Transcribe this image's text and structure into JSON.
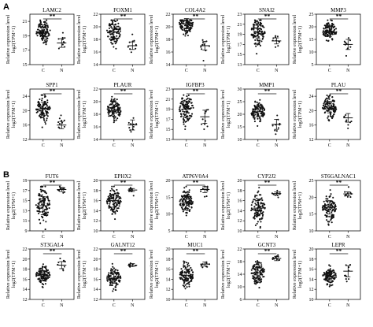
{
  "panel_labels": [
    "A",
    "B"
  ],
  "chart_data": [
    {
      "type": "scatter",
      "panel": "A",
      "title": "LAMC2",
      "ylabel": "Relative expression level",
      "ylabel2": "log2(TPM+1)",
      "yticks": [
        15,
        17,
        19,
        21
      ],
      "ylim": [
        15,
        22
      ],
      "categories": [
        "C",
        "N"
      ],
      "significance": "**",
      "series": [
        {
          "name": "C",
          "mean": 19.6,
          "sd": 0.9,
          "n": 110
        },
        {
          "name": "N",
          "mean": 18.0,
          "sd": 0.6,
          "n": 10
        }
      ]
    },
    {
      "type": "scatter",
      "panel": "A",
      "title": "FOXM1",
      "ylabel": "Relative expression level",
      "ylabel2": "log2(TPM+1)",
      "yticks": [
        14,
        16,
        18,
        20,
        22
      ],
      "ylim": [
        14,
        22
      ],
      "categories": [
        "C",
        "N"
      ],
      "significance": "**",
      "series": [
        {
          "name": "C",
          "mean": 19.2,
          "sd": 1.1,
          "n": 110
        },
        {
          "name": "N",
          "mean": 17.0,
          "sd": 0.6,
          "n": 10
        }
      ]
    },
    {
      "type": "scatter",
      "panel": "A",
      "title": "COL4A2",
      "ylabel": "Relative expression level",
      "ylabel2": "log2(TPM+1)",
      "yticks": [
        14,
        16,
        18,
        20,
        22
      ],
      "ylim": [
        14,
        22
      ],
      "categories": [
        "C",
        "N"
      ],
      "significance": "**",
      "series": [
        {
          "name": "C",
          "mean": 20.5,
          "sd": 0.8,
          "n": 110
        },
        {
          "name": "N",
          "mean": 17.0,
          "sd": 0.7,
          "n": 10
        }
      ]
    },
    {
      "type": "scatter",
      "panel": "A",
      "title": "SNAI2",
      "ylabel": "Relative expression level",
      "ylabel2": "log2(TPM+1)",
      "yticks": [
        13,
        15,
        17,
        19,
        21,
        23
      ],
      "ylim": [
        13,
        23
      ],
      "categories": [
        "C",
        "N"
      ],
      "significance": "**",
      "series": [
        {
          "name": "C",
          "mean": 19.5,
          "sd": 1.3,
          "n": 110
        },
        {
          "name": "N",
          "mean": 17.7,
          "sd": 0.6,
          "n": 10
        }
      ]
    },
    {
      "type": "scatter",
      "panel": "A",
      "title": "MMP3",
      "ylabel": "Relative expression level",
      "ylabel2": "log2(TPM+1)",
      "yticks": [
        5,
        10,
        15,
        20,
        25
      ],
      "ylim": [
        5,
        25
      ],
      "categories": [
        "C",
        "N"
      ],
      "significance": "**",
      "series": [
        {
          "name": "C",
          "mean": 18.2,
          "sd": 2.0,
          "n": 110
        },
        {
          "name": "N",
          "mean": 13.0,
          "sd": 2.0,
          "n": 10
        }
      ]
    },
    {
      "type": "scatter",
      "panel": "A",
      "title": "SPP1",
      "ylabel": "Relative expression level",
      "ylabel2": "log2(TPM+1)",
      "yticks": [
        12,
        16,
        20,
        24
      ],
      "ylim": [
        12,
        26
      ],
      "categories": [
        "C",
        "N"
      ],
      "significance": "**",
      "series": [
        {
          "name": "C",
          "mean": 20.5,
          "sd": 1.8,
          "n": 110
        },
        {
          "name": "N",
          "mean": 16.0,
          "sd": 1.0,
          "n": 10
        }
      ]
    },
    {
      "type": "scatter",
      "panel": "A",
      "title": "PLAUR",
      "ylabel": "Relative expression level",
      "ylabel2": "log2(TPM+1)",
      "yticks": [
        14,
        16,
        18,
        20,
        22
      ],
      "ylim": [
        14,
        22
      ],
      "categories": [
        "C",
        "N"
      ],
      "significance": "**",
      "series": [
        {
          "name": "C",
          "mean": 18.6,
          "sd": 0.9,
          "n": 110
        },
        {
          "name": "N",
          "mean": 16.3,
          "sd": 0.8,
          "n": 10
        }
      ]
    },
    {
      "type": "scatter",
      "panel": "A",
      "title": "IGFBP3",
      "ylabel": "Relative expression level",
      "ylabel2": "log2(TPM+1)",
      "yticks": [
        13,
        15,
        17,
        19,
        21,
        23
      ],
      "ylim": [
        13,
        23
      ],
      "categories": [
        "C",
        "N"
      ],
      "significance": "**",
      "series": [
        {
          "name": "C",
          "mean": 19.0,
          "sd": 1.6,
          "n": 110
        },
        {
          "name": "N",
          "mean": 17.5,
          "sd": 1.3,
          "n": 10
        }
      ]
    },
    {
      "type": "scatter",
      "panel": "A",
      "title": "MMP1",
      "ylabel": "Relative expression level",
      "ylabel2": "log2(TPM+1)",
      "yticks": [
        10,
        15,
        20,
        25,
        30
      ],
      "ylim": [
        10,
        30
      ],
      "categories": [
        "C",
        "N"
      ],
      "significance": "**",
      "series": [
        {
          "name": "C",
          "mean": 21.0,
          "sd": 2.0,
          "n": 110
        },
        {
          "name": "N",
          "mean": 16.0,
          "sd": 2.0,
          "n": 10
        }
      ]
    },
    {
      "type": "scatter",
      "panel": "A",
      "title": "PLAU",
      "ylabel": "Relative expression level",
      "ylabel2": "log2(TPM+1)",
      "yticks": [
        12,
        16,
        20,
        24
      ],
      "ylim": [
        12,
        26
      ],
      "categories": [
        "C",
        "N"
      ],
      "significance": "**",
      "series": [
        {
          "name": "C",
          "mean": 21.0,
          "sd": 1.6,
          "n": 110
        },
        {
          "name": "N",
          "mean": 18.0,
          "sd": 1.2,
          "n": 10
        }
      ]
    },
    {
      "type": "scatter",
      "panel": "B",
      "title": "FUT6",
      "ylabel": "Relative expression level",
      "ylabel2": "log2(TPM+1)",
      "yticks": [
        9,
        11,
        13,
        15,
        17,
        19
      ],
      "ylim": [
        9,
        19
      ],
      "categories": [
        "C",
        "N"
      ],
      "significance": "**",
      "series": [
        {
          "name": "C",
          "mean": 14.0,
          "sd": 1.8,
          "n": 110
        },
        {
          "name": "N",
          "mean": 17.2,
          "sd": 0.4,
          "n": 10
        }
      ]
    },
    {
      "type": "scatter",
      "panel": "B",
      "title": "EPHX2",
      "ylabel": "Relative expression level",
      "ylabel2": "log2(TPM+1)",
      "yticks": [
        10,
        12,
        14,
        16,
        18,
        20
      ],
      "ylim": [
        10,
        20
      ],
      "categories": [
        "C",
        "N"
      ],
      "significance": "**",
      "series": [
        {
          "name": "C",
          "mean": 16.0,
          "sd": 1.3,
          "n": 110
        },
        {
          "name": "N",
          "mean": 18.1,
          "sd": 0.3,
          "n": 10
        }
      ]
    },
    {
      "type": "scatter",
      "panel": "B",
      "title": "ATP6V0A4",
      "ylabel": "Relative expression level",
      "ylabel2": "log2(TPM+1)",
      "yticks": [
        5,
        10,
        15,
        20
      ],
      "ylim": [
        5,
        20
      ],
      "categories": [
        "C",
        "N"
      ],
      "significance": "**",
      "series": [
        {
          "name": "C",
          "mean": 13.5,
          "sd": 1.8,
          "n": 110
        },
        {
          "name": "N",
          "mean": 17.3,
          "sd": 0.9,
          "n": 10
        }
      ]
    },
    {
      "type": "scatter",
      "panel": "B",
      "title": "CYP2J2",
      "ylabel": "Relative expression level",
      "ylabel2": "log2(TPM+1)",
      "yticks": [
        10,
        12,
        14,
        16,
        18,
        20
      ],
      "ylim": [
        10,
        20
      ],
      "categories": [
        "C",
        "N"
      ],
      "significance": "**",
      "series": [
        {
          "name": "C",
          "mean": 14.5,
          "sd": 1.5,
          "n": 110
        },
        {
          "name": "N",
          "mean": 17.4,
          "sd": 0.3,
          "n": 10
        }
      ]
    },
    {
      "type": "scatter",
      "panel": "B",
      "title": "ST6GALNAC1",
      "ylabel": "Relative expression level",
      "ylabel2": "log2(TPM+1)",
      "yticks": [
        10,
        15,
        20,
        25
      ],
      "ylim": [
        10,
        25
      ],
      "categories": [
        "C",
        "N"
      ],
      "significance": "**",
      "series": [
        {
          "name": "C",
          "mean": 17.0,
          "sd": 2.0,
          "n": 110
        },
        {
          "name": "N",
          "mean": 21.0,
          "sd": 0.6,
          "n": 10
        }
      ]
    },
    {
      "type": "scatter",
      "panel": "B",
      "title": "ST3GAL4",
      "ylabel": "Relative expression level",
      "ylabel2": "log2(TPM+1)",
      "yticks": [
        12,
        14,
        16,
        18,
        20,
        22
      ],
      "ylim": [
        12,
        22
      ],
      "categories": [
        "C",
        "N"
      ],
      "significance": "**",
      "series": [
        {
          "name": "C",
          "mean": 16.9,
          "sd": 0.8,
          "n": 110
        },
        {
          "name": "N",
          "mean": 18.8,
          "sd": 0.7,
          "n": 10
        }
      ]
    },
    {
      "type": "scatter",
      "panel": "B",
      "title": "GALNT12",
      "ylabel": "Relative expression level",
      "ylabel2": "log2(TPM+1)",
      "yticks": [
        12,
        14,
        16,
        18,
        20,
        22
      ],
      "ylim": [
        12,
        22
      ],
      "categories": [
        "C",
        "N"
      ],
      "significance": "**",
      "series": [
        {
          "name": "C",
          "mean": 16.2,
          "sd": 1.0,
          "n": 110
        },
        {
          "name": "N",
          "mean": 18.8,
          "sd": 0.3,
          "n": 10
        }
      ]
    },
    {
      "type": "scatter",
      "panel": "B",
      "title": "MUC1",
      "ylabel": "Relative expression level",
      "ylabel2": "log2(TPM+1)",
      "yticks": [
        10,
        12,
        14,
        16,
        18,
        20
      ],
      "ylim": [
        10,
        20
      ],
      "categories": [
        "C",
        "N"
      ],
      "significance": "**",
      "series": [
        {
          "name": "C",
          "mean": 14.8,
          "sd": 1.2,
          "n": 110
        },
        {
          "name": "N",
          "mean": 17.0,
          "sd": 0.4,
          "n": 10
        }
      ]
    },
    {
      "type": "scatter",
      "panel": "B",
      "title": "GCNT3",
      "ylabel": "Relative expression level",
      "ylabel2": "log2(TPM+1)",
      "yticks": [
        6,
        10,
        14,
        18,
        22
      ],
      "ylim": [
        6,
        22
      ],
      "categories": [
        "C",
        "N"
      ],
      "significance": "**",
      "series": [
        {
          "name": "C",
          "mean": 14.5,
          "sd": 1.8,
          "n": 110
        },
        {
          "name": "N",
          "mean": 19.0,
          "sd": 0.7,
          "n": 10
        }
      ]
    },
    {
      "type": "scatter",
      "panel": "B",
      "title": "LEPR",
      "ylabel": "Relative expression level",
      "ylabel2": "log2(TPM+1)",
      "yticks": [
        10,
        12,
        14,
        16,
        18,
        20
      ],
      "ylim": [
        10,
        20
      ],
      "categories": [
        "C",
        "N"
      ],
      "significance": "**",
      "series": [
        {
          "name": "C",
          "mean": 14.6,
          "sd": 0.8,
          "n": 110
        },
        {
          "name": "N",
          "mean": 15.6,
          "sd": 1.1,
          "n": 10
        }
      ]
    }
  ]
}
